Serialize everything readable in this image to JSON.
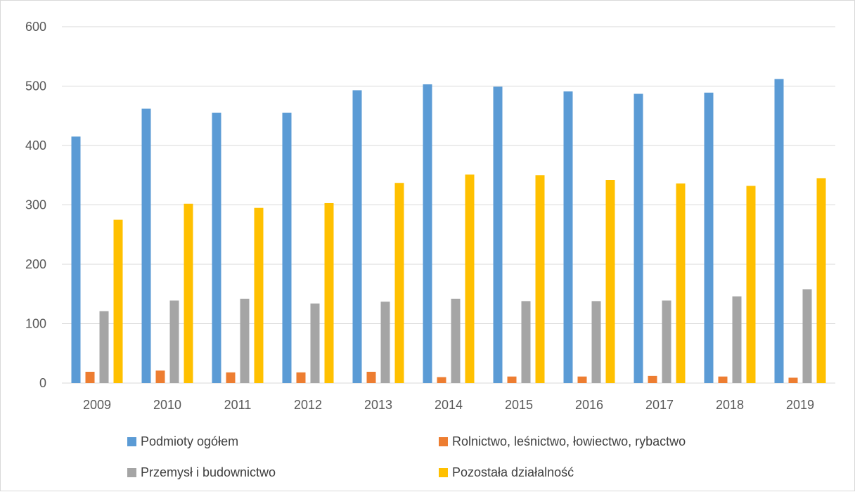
{
  "chart_data": {
    "type": "bar",
    "categories": [
      "2009",
      "2010",
      "2011",
      "2012",
      "2013",
      "2014",
      "2015",
      "2016",
      "2017",
      "2018",
      "2019"
    ],
    "series": [
      {
        "name": "Podmioty ogółem",
        "color": "#5B9BD5",
        "values": [
          415,
          462,
          455,
          455,
          493,
          503,
          499,
          491,
          487,
          489,
          512
        ]
      },
      {
        "name": "Rolnictwo, leśnictwo, łowiectwo, rybactwo",
        "color": "#ED7D31",
        "values": [
          19,
          21,
          18,
          18,
          19,
          10,
          11,
          11,
          12,
          11,
          9
        ]
      },
      {
        "name": "Przemysł i budownictwo",
        "color": "#A5A5A5",
        "values": [
          121,
          139,
          142,
          134,
          137,
          142,
          138,
          138,
          139,
          146,
          158
        ]
      },
      {
        "name": "Pozostała działalność",
        "color": "#FFC000",
        "values": [
          275,
          302,
          295,
          303,
          337,
          351,
          350,
          342,
          336,
          332,
          345
        ]
      }
    ],
    "ylim": [
      0,
      600
    ],
    "yticks": [
      0,
      100,
      200,
      300,
      400,
      500,
      600
    ],
    "grid": true,
    "legend_position": "bottom"
  }
}
